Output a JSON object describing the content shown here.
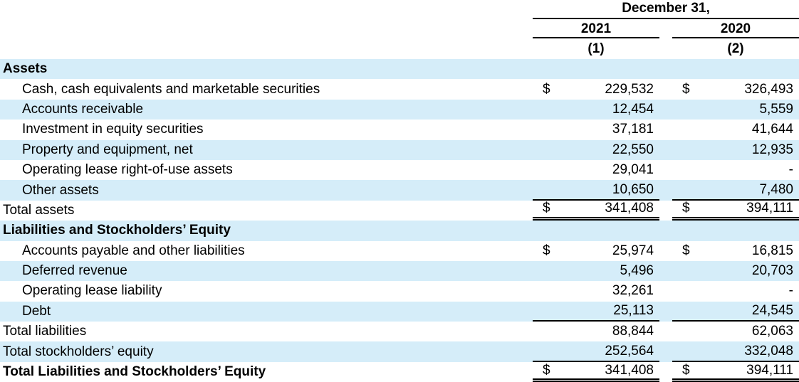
{
  "table": {
    "currency_symbol": "$",
    "colors": {
      "shade": "#d5edf9",
      "text": "#000000",
      "line": "#000000"
    },
    "header": {
      "date_label": "December 31,",
      "columns": [
        {
          "year": "2021",
          "note": "(1)"
        },
        {
          "year": "2020",
          "note": "(2)"
        }
      ]
    },
    "rows": [
      {
        "label": "Assets",
        "type": "section",
        "shade": true
      },
      {
        "label": "Cash, cash equivalents and marketable securities",
        "indent": true,
        "dollar": true,
        "v2021": "229,532",
        "v2020": "326,493",
        "shade": false
      },
      {
        "label": "Accounts receivable",
        "indent": true,
        "v2021": "12,454",
        "v2020": "5,559",
        "shade": true
      },
      {
        "label": "Investment in equity securities",
        "indent": true,
        "v2021": "37,181",
        "v2020": "41,644",
        "shade": false
      },
      {
        "label": "Property and equipment, net",
        "indent": true,
        "v2021": "22,550",
        "v2020": "12,935",
        "shade": true
      },
      {
        "label": "Operating lease right-of-use assets",
        "indent": true,
        "v2021": "29,041",
        "v2020": "-",
        "shade": false
      },
      {
        "label": "Other assets",
        "indent": true,
        "v2021": "10,650",
        "v2020": "7,480",
        "shade": true,
        "underline": "single"
      },
      {
        "label": "Total assets",
        "dollar": true,
        "v2021": "341,408",
        "v2020": "394,111",
        "shade": false,
        "underline": "double"
      },
      {
        "label": "Liabilities and Stockholders’ Equity",
        "type": "section",
        "shade": true
      },
      {
        "label": "Accounts payable and other liabilities",
        "indent": true,
        "dollar": true,
        "v2021": "25,974",
        "v2020": "16,815",
        "shade": false
      },
      {
        "label": "Deferred revenue",
        "indent": true,
        "v2021": "5,496",
        "v2020": "20,703",
        "shade": true
      },
      {
        "label": "Operating lease liability",
        "indent": true,
        "v2021": "32,261",
        "v2020": "-",
        "shade": false
      },
      {
        "label": "Debt",
        "indent": true,
        "v2021": "25,113",
        "v2020": "24,545",
        "shade": true,
        "underline": "single"
      },
      {
        "label": "Total liabilities",
        "v2021": "88,844",
        "v2020": "62,063",
        "shade": false
      },
      {
        "label": "Total stockholders’ equity",
        "v2021": "252,564",
        "v2020": "332,048",
        "shade": true,
        "underline": "single"
      },
      {
        "label": "Total Liabilities and Stockholders’ Equity",
        "bold": true,
        "dollar": true,
        "v2021": "341,408",
        "v2020": "394,111",
        "shade": false,
        "underline": "double"
      }
    ]
  }
}
